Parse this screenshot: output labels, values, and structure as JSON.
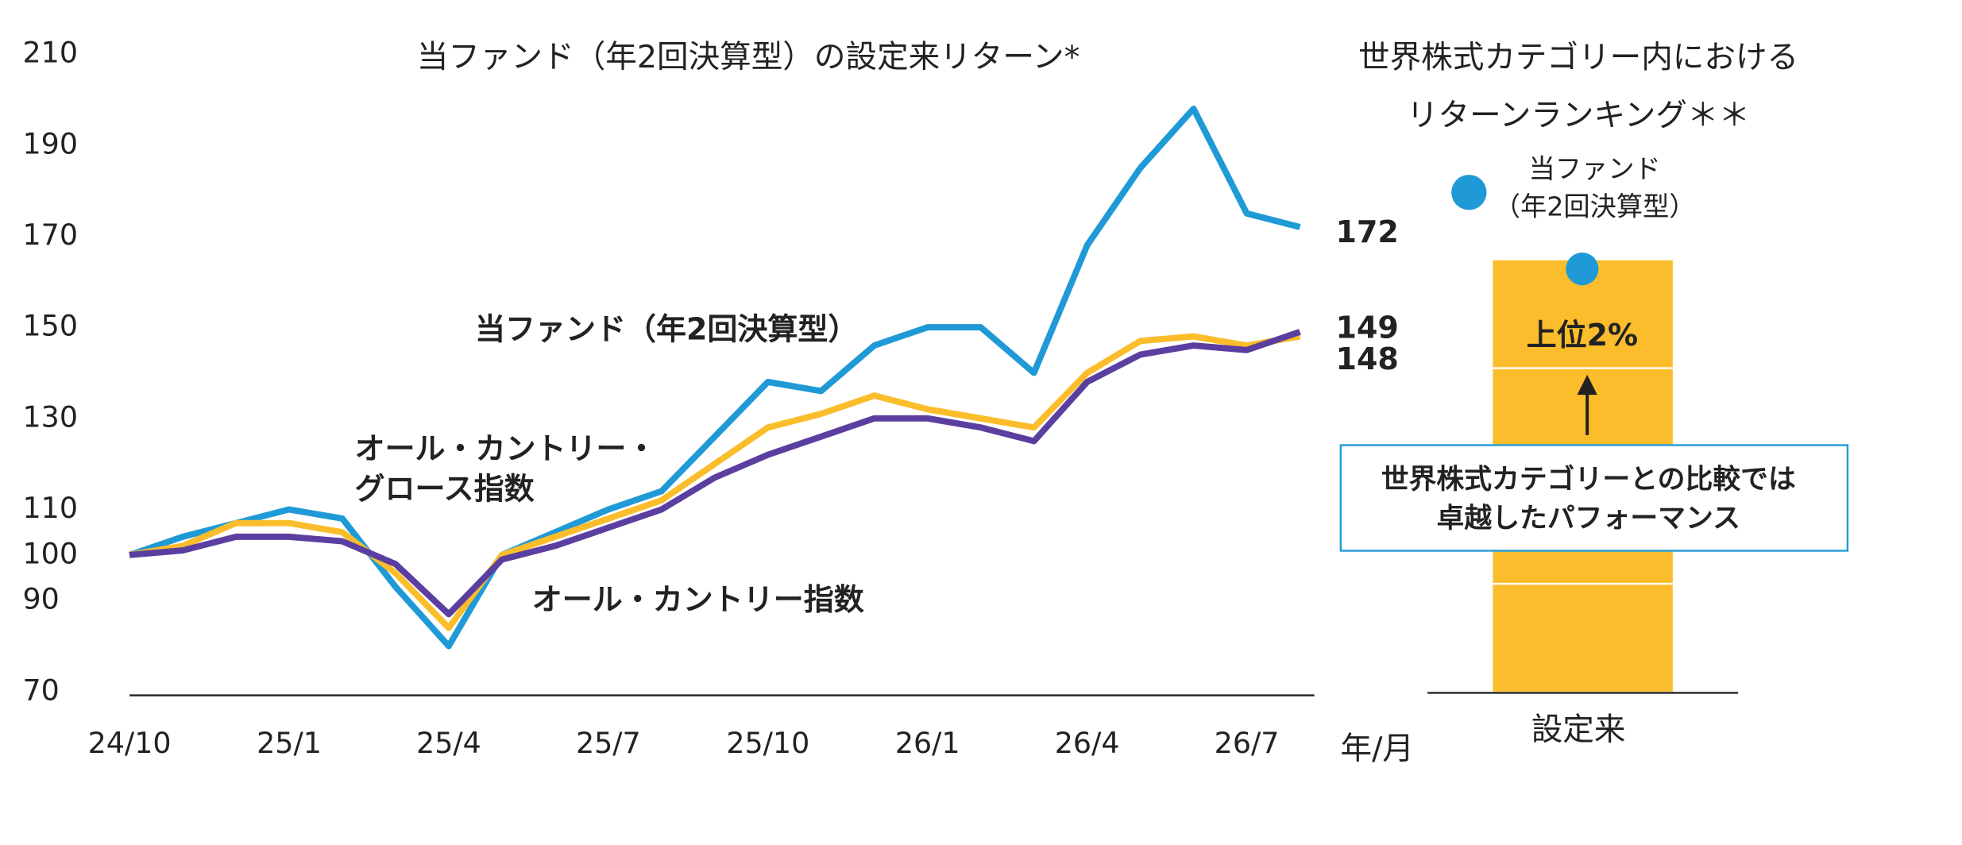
{
  "chart_data": [
    {
      "type": "line",
      "title": "当ファンド（年2回決算型）の設定来リターン*",
      "x": [
        "24/10",
        "24/11",
        "24/12",
        "25/1",
        "25/2",
        "25/3",
        "25/4",
        "25/5",
        "25/6",
        "25/7",
        "25/8",
        "25/9",
        "25/10",
        "25/11",
        "25/12",
        "26/1",
        "26/2",
        "26/3",
        "26/4",
        "26/5",
        "26/6",
        "26/7",
        "26/8"
      ],
      "xticks": [
        "24/10",
        "25/1",
        "25/4",
        "25/7",
        "25/10",
        "26/1",
        "26/4",
        "26/7"
      ],
      "x_label": "年/月",
      "ylim": [
        70,
        210
      ],
      "yticks": [
        70,
        90,
        100,
        110,
        130,
        150,
        170,
        190,
        210
      ],
      "series": [
        {
          "name": "当ファンド（年2回決算型）",
          "color": "#1f9ad6",
          "label_color": "#1f9ad6",
          "values": [
            100,
            104,
            107,
            110,
            108,
            93,
            80,
            100,
            105,
            110,
            114,
            126,
            138,
            136,
            146,
            150,
            150,
            140,
            168,
            185,
            198,
            175,
            172
          ]
        },
        {
          "name": "オール・カントリー・\nグロース指数",
          "color": "#fbbd2b",
          "label_color": "#e3a012",
          "values": [
            100,
            102,
            107,
            107,
            105,
            96,
            84,
            100,
            104,
            108,
            112,
            120,
            128,
            131,
            135,
            132,
            130,
            128,
            140,
            147,
            148,
            146,
            148
          ]
        },
        {
          "name": "オール・カントリー指数",
          "color": "#5b3fa0",
          "label_color": "#5b3fa0",
          "values": [
            100,
            101,
            104,
            104,
            103,
            98,
            87,
            99,
            102,
            106,
            110,
            117,
            122,
            126,
            130,
            130,
            128,
            125,
            138,
            144,
            146,
            145,
            149
          ]
        }
      ]
    },
    {
      "type": "bar",
      "title": "世界株式カテゴリー内における\nリターンランキング＊＊",
      "categories": [
        "設定来"
      ],
      "values": [
        2
      ],
      "value_labels": [
        "上位2%"
      ],
      "ylim": [
        0,
        100
      ],
      "y_inverted": true,
      "yticks": [
        25,
        75
      ],
      "bar_color": "#fbbd2b",
      "series": [
        {
          "name": "当ファンド\n（年2回決算型）",
          "color": "#1f9ad6"
        }
      ],
      "annotation": "世界株式カテゴリーとの比較では\n卓越したパフォーマンス"
    }
  ]
}
